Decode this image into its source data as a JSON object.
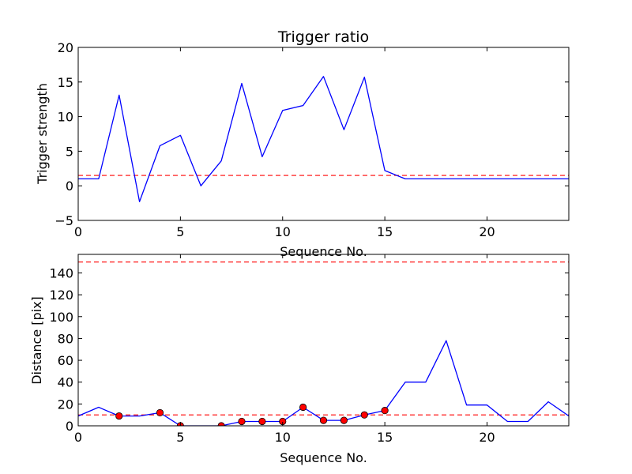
{
  "chart_data": [
    {
      "type": "line",
      "title": "Trigger ratio",
      "xlabel": "Sequence No.",
      "ylabel": "Trigger strength",
      "xlim": [
        0,
        24
      ],
      "ylim": [
        -5,
        20
      ],
      "xticks": [
        0,
        5,
        10,
        15,
        20
      ],
      "yticks": [
        -5,
        0,
        5,
        10,
        15,
        20
      ],
      "grid": false,
      "series": [
        {
          "color": "#0000ff",
          "x": [
            0,
            1,
            2,
            3,
            4,
            5,
            6,
            7,
            8,
            9,
            10,
            11,
            12,
            13,
            14,
            15,
            16,
            17,
            18,
            19,
            20,
            21,
            22,
            23,
            24
          ],
          "y": [
            1.0,
            1.0,
            13.1,
            -2.3,
            5.8,
            7.3,
            0.0,
            3.6,
            14.8,
            4.2,
            10.9,
            11.6,
            15.8,
            8.1,
            15.7,
            2.2,
            1.0,
            1.0,
            1.0,
            1.0,
            1.0,
            1.0,
            1.0,
            1.0,
            1.0
          ]
        }
      ],
      "hlines": [
        {
          "y": 1.5,
          "color": "#ff0000",
          "style": "dashed"
        }
      ]
    },
    {
      "type": "line",
      "title": "",
      "xlabel": "Sequence No.",
      "ylabel": "Distance [pix]",
      "xlim": [
        0,
        24
      ],
      "ylim": [
        0,
        157
      ],
      "xticks": [
        0,
        5,
        10,
        15,
        20
      ],
      "yticks": [
        0,
        20,
        40,
        60,
        80,
        100,
        120,
        140
      ],
      "grid": false,
      "series": [
        {
          "color": "#0000ff",
          "x": [
            0,
            1,
            2,
            3,
            4,
            5,
            6,
            7,
            8,
            9,
            10,
            11,
            12,
            13,
            14,
            15,
            16,
            17,
            18,
            19,
            20,
            21,
            22,
            23,
            24
          ],
          "y": [
            9,
            17,
            9,
            9,
            12,
            0,
            0,
            0,
            4,
            4,
            4,
            17,
            5,
            5,
            10,
            14,
            40,
            40,
            78,
            19,
            19,
            4,
            4,
            22,
            9
          ]
        }
      ],
      "markers": {
        "color": "#ff0000",
        "x": [
          2,
          4,
          5,
          7,
          8,
          9,
          10,
          11,
          12,
          13,
          14,
          15
        ],
        "y": [
          9,
          12,
          0,
          0,
          4,
          4,
          4,
          17,
          5,
          5,
          10,
          14
        ]
      },
      "hlines": [
        {
          "y": 150,
          "color": "#ff0000",
          "style": "dashed"
        },
        {
          "y": 10,
          "color": "#ff0000",
          "style": "dashed"
        }
      ]
    }
  ]
}
